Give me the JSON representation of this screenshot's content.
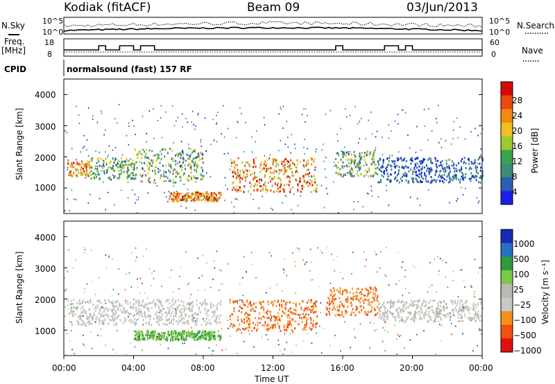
{
  "header": {
    "station": "Kodiak (fitACF)",
    "beam": "Beam 09",
    "date": "03/Jun/2013"
  },
  "top": {
    "nsky_label": "N.Sky",
    "nsky_ticks": [
      "10^5",
      "10^0"
    ],
    "nsearch_ticks": [
      "10^5",
      "10^0"
    ],
    "nsearch_label": "N.Search",
    "freq_label": "Freq.",
    "freq_unit": "[MHz]",
    "freq_ticks": [
      "18",
      "8"
    ],
    "nave_ticks": [
      "60",
      "0"
    ],
    "nave_label": "Nave",
    "cpid_label": "CPID",
    "cpid_text": "normalsound (fast) 157 RF"
  },
  "colors": {
    "power": [
      "#1e1ee6",
      "#2a5fb0",
      "#3b8a7a",
      "#3aa24a",
      "#9cc932",
      "#f0c020",
      "#f08a10",
      "#e84a10",
      "#d40a0a"
    ],
    "velocity": [
      "#e01010",
      "#f05010",
      "#f5901a",
      "#c8c8c4",
      "#b8b8b4",
      "#78c84a",
      "#2f9a3a",
      "#2a70c0",
      "#1a2ab8"
    ]
  },
  "chart_data": [
    {
      "type": "heatmap",
      "title": "Power",
      "ylabel": "Slant Range [km]",
      "yticks": [
        "4000",
        "3000",
        "2000",
        "1000"
      ],
      "ylim": [
        180,
        4500
      ],
      "xticks": [
        "00:00",
        "04:00",
        "08:00",
        "12:00",
        "16:00",
        "20:00",
        "00:00"
      ],
      "xlim_hours": [
        0,
        24
      ],
      "colorbar": {
        "label": "Power [dB]",
        "ticks": [
          "28",
          "24",
          "20",
          "16",
          "12",
          "8",
          "4"
        ],
        "range": [
          0,
          32
        ]
      },
      "scatter_regions": [
        {
          "t": [
            0.2,
            1.5
          ],
          "range": [
            1400,
            1900
          ],
          "level": "high"
        },
        {
          "t": [
            1.5,
            4.0
          ],
          "range": [
            1300,
            2000
          ],
          "level": "medium"
        },
        {
          "t": [
            4.0,
            8.0
          ],
          "range": [
            1200,
            2300
          ],
          "level": "medium"
        },
        {
          "t": [
            6.0,
            9.0
          ],
          "range": [
            600,
            900
          ],
          "level": "high"
        },
        {
          "t": [
            9.5,
            14.5
          ],
          "range": [
            900,
            2000
          ],
          "level": "high"
        },
        {
          "t": [
            15.5,
            18.0
          ],
          "range": [
            1400,
            2200
          ],
          "level": "medium"
        },
        {
          "t": [
            18.0,
            24.0
          ],
          "range": [
            1200,
            2000
          ],
          "level": "low"
        }
      ]
    },
    {
      "type": "heatmap",
      "title": "Velocity",
      "ylabel": "Slant Range [km]",
      "yticks": [
        "4000",
        "3000",
        "2000",
        "1000"
      ],
      "ylim": [
        180,
        4500
      ],
      "xticks": [
        "00:00",
        "04:00",
        "08:00",
        "12:00",
        "16:00",
        "20:00",
        "00:00"
      ],
      "xlabel": "Time UT",
      "xlim_hours": [
        0,
        24
      ],
      "colorbar": {
        "label": "Velocity [m s⁻¹]",
        "ticks": [
          "1000",
          "500",
          "100",
          "25",
          "−25",
          "−100",
          "−500",
          "−1000"
        ],
        "range": [
          -1000,
          1000
        ]
      },
      "scatter_regions": [
        {
          "t": [
            0.2,
            9.0
          ],
          "range": [
            1200,
            2000
          ],
          "level": "ground"
        },
        {
          "t": [
            4.0,
            9.0
          ],
          "range": [
            700,
            1000
          ],
          "level": "positive"
        },
        {
          "t": [
            9.5,
            14.5
          ],
          "range": [
            1000,
            2000
          ],
          "level": "negative"
        },
        {
          "t": [
            15.0,
            18.0
          ],
          "range": [
            1500,
            2400
          ],
          "level": "negative"
        },
        {
          "t": [
            18.0,
            24.0
          ],
          "range": [
            1300,
            2000
          ],
          "level": "ground"
        }
      ]
    }
  ]
}
